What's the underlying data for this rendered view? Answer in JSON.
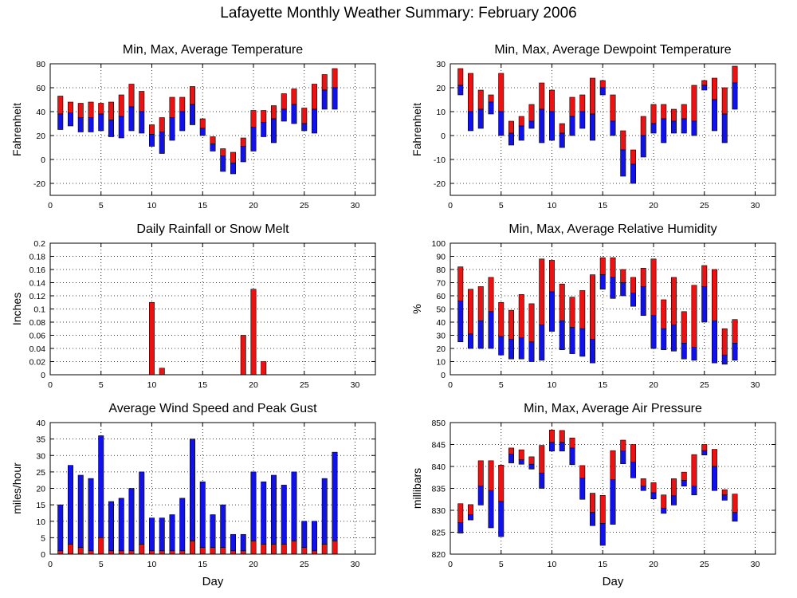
{
  "title": "Lafayette Monthly Weather Summary: February 2006",
  "colors": {
    "max": "#ee1111",
    "min": "#1111ee",
    "axis": "#000000",
    "grid": "#000000"
  },
  "chart_data": [
    {
      "id": "temp",
      "type": "floating-bar",
      "title": "Min, Max, Average Temperature",
      "xlabel": "",
      "ylabel": "Fahrenheit",
      "xlim": [
        0,
        32
      ],
      "xticks": [
        0,
        5,
        10,
        15,
        20,
        25,
        30
      ],
      "ylim": [
        -30,
        80
      ],
      "yticks": [
        -20,
        0,
        20,
        40,
        60,
        80
      ],
      "x": [
        1,
        2,
        3,
        4,
        5,
        6,
        7,
        8,
        9,
        10,
        11,
        12,
        13,
        14,
        15,
        16,
        17,
        18,
        19,
        20,
        21,
        22,
        23,
        24,
        25,
        26,
        27,
        28
      ],
      "min": [
        25,
        28,
        23,
        23,
        24,
        19,
        18,
        24,
        22,
        11,
        5,
        16,
        24,
        29,
        20,
        7,
        -10,
        -12,
        -2,
        7,
        19,
        14,
        32,
        30,
        24,
        22,
        42,
        42
      ],
      "avg": [
        38,
        39,
        35,
        35,
        38,
        33,
        36,
        44,
        40,
        21,
        23,
        35,
        40,
        46,
        26,
        13,
        3,
        -3,
        11,
        27,
        31,
        34,
        42,
        46,
        30,
        42,
        58,
        60
      ],
      "max": [
        53,
        48,
        47,
        48,
        47,
        48,
        54,
        63,
        57,
        29,
        35,
        52,
        52,
        61,
        34,
        19,
        9,
        6,
        18,
        41,
        41,
        45,
        55,
        59,
        43,
        63,
        71,
        76
      ]
    },
    {
      "id": "dewpoint",
      "type": "floating-bar",
      "title": "Min, Max, Average Dewpoint Temperature",
      "xlabel": "",
      "ylabel": "Fahrenheit",
      "xlim": [
        0,
        32
      ],
      "xticks": [
        0,
        5,
        10,
        15,
        20,
        25,
        30
      ],
      "ylim": [
        -25,
        30
      ],
      "yticks": [
        -20,
        -10,
        0,
        10,
        20,
        30
      ],
      "x": [
        1,
        2,
        3,
        4,
        5,
        6,
        7,
        8,
        9,
        10,
        11,
        12,
        13,
        14,
        15,
        16,
        17,
        18,
        19,
        20,
        21,
        22,
        23,
        24,
        25,
        26,
        27,
        28
      ],
      "min": [
        17,
        2,
        3,
        9,
        0,
        -4,
        -2,
        3,
        -3,
        -2,
        -5,
        0,
        3,
        -2,
        17,
        0,
        -17,
        -20,
        -9,
        1,
        -3,
        1,
        1,
        0,
        19,
        2,
        -3,
        11
      ],
      "avg": [
        21,
        10,
        11,
        14,
        10,
        1,
        4,
        6,
        11,
        10,
        1,
        8,
        10,
        9,
        20,
        6,
        -6,
        -12,
        0,
        5,
        7,
        6,
        7,
        6,
        21,
        15,
        9,
        22
      ],
      "max": [
        28,
        26,
        19,
        17,
        26,
        6,
        8,
        13,
        22,
        19,
        5,
        16,
        17,
        24,
        23,
        17,
        2,
        -6,
        8,
        13,
        13,
        11,
        13,
        21,
        23,
        24,
        20,
        29
      ]
    },
    {
      "id": "rain",
      "type": "bar",
      "title": "Daily Rainfall or Snow Melt",
      "xlabel": "",
      "ylabel": "Inches",
      "xlim": [
        0,
        32
      ],
      "xticks": [
        0,
        5,
        10,
        15,
        20,
        25,
        30
      ],
      "ylim": [
        0,
        0.2
      ],
      "yticks": [
        0,
        0.02,
        0.04,
        0.06,
        0.08,
        0.1,
        0.12,
        0.14,
        0.16,
        0.18,
        0.2
      ],
      "x": [
        10,
        11,
        19,
        20,
        21
      ],
      "values": [
        0.11,
        0.01,
        0.06,
        0.13,
        0.02
      ]
    },
    {
      "id": "humidity",
      "type": "floating-bar",
      "title": "Min, Max, Average Relative Humidity",
      "xlabel": "",
      "ylabel": "%",
      "xlim": [
        0,
        32
      ],
      "xticks": [
        0,
        5,
        10,
        15,
        20,
        25,
        30
      ],
      "ylim": [
        0,
        100
      ],
      "yticks": [
        0,
        10,
        20,
        30,
        40,
        50,
        60,
        70,
        80,
        90,
        100
      ],
      "x": [
        1,
        2,
        3,
        4,
        5,
        6,
        7,
        8,
        9,
        10,
        11,
        12,
        13,
        14,
        15,
        16,
        17,
        18,
        19,
        20,
        21,
        22,
        23,
        24,
        25,
        26,
        27,
        28
      ],
      "min": [
        25,
        20,
        20,
        20,
        15,
        12,
        12,
        10,
        11,
        33,
        19,
        16,
        14,
        9,
        65,
        58,
        60,
        52,
        45,
        20,
        19,
        18,
        12,
        11,
        40,
        9,
        8,
        11
      ],
      "avg": [
        56,
        31,
        41,
        48,
        29,
        27,
        28,
        25,
        38,
        63,
        41,
        36,
        35,
        27,
        76,
        74,
        70,
        62,
        67,
        45,
        35,
        38,
        24,
        21,
        67,
        41,
        15,
        24
      ],
      "max": [
        82,
        65,
        67,
        74,
        55,
        49,
        61,
        54,
        88,
        87,
        69,
        59,
        64,
        76,
        89,
        89,
        80,
        74,
        81,
        88,
        57,
        74,
        48,
        68,
        83,
        80,
        35,
        42
      ]
    },
    {
      "id": "wind",
      "type": "stacked-bar",
      "title": "Average Wind Speed and Peak Gust",
      "xlabel": "Day",
      "ylabel": "miles/hour",
      "xlim": [
        0,
        32
      ],
      "xticks": [
        0,
        5,
        10,
        15,
        20,
        25,
        30
      ],
      "ylim": [
        0,
        40
      ],
      "yticks": [
        0,
        5,
        10,
        15,
        20,
        25,
        30,
        35,
        40
      ],
      "x": [
        1,
        2,
        3,
        4,
        5,
        6,
        7,
        8,
        9,
        10,
        11,
        12,
        13,
        14,
        15,
        16,
        17,
        18,
        19,
        20,
        21,
        22,
        23,
        24,
        25,
        26,
        27,
        28
      ],
      "series": [
        {
          "name": "avg",
          "values": [
            1,
            3,
            2,
            1,
            5,
            1,
            1,
            1,
            3,
            1,
            1,
            1,
            1,
            4,
            2,
            2,
            2,
            1,
            1,
            4,
            3,
            3,
            3,
            4,
            2,
            1,
            3,
            4
          ]
        },
        {
          "name": "gust",
          "values": [
            15,
            27,
            24,
            23,
            36,
            16,
            17,
            20,
            25,
            11,
            11,
            12,
            17,
            35,
            22,
            12,
            15,
            6,
            6,
            25,
            22,
            24,
            21,
            25,
            10,
            10,
            23,
            31
          ]
        }
      ]
    },
    {
      "id": "pressure",
      "type": "floating-bar",
      "title": "Min, Max, Average Air Pressure",
      "xlabel": "Day",
      "ylabel": "millibars",
      "xlim": [
        0,
        32
      ],
      "xticks": [
        0,
        5,
        10,
        15,
        20,
        25,
        30
      ],
      "ylim": [
        820,
        850
      ],
      "yticks": [
        820,
        825,
        830,
        835,
        840,
        845,
        850
      ],
      "x": [
        1,
        2,
        3,
        4,
        5,
        6,
        7,
        8,
        9,
        10,
        11,
        12,
        13,
        14,
        15,
        16,
        17,
        18,
        19,
        20,
        21,
        22,
        23,
        24,
        25,
        26,
        27,
        28
      ],
      "min": [
        824.8,
        827.8,
        831.2,
        826.0,
        824.0,
        840.8,
        840.5,
        839.4,
        835.0,
        843.5,
        843.5,
        840.4,
        832.5,
        826.5,
        822.0,
        826.8,
        840.6,
        837.4,
        834.5,
        832.6,
        829.3,
        831.2,
        835.5,
        833.5,
        842.6,
        834.5,
        832.3,
        827.5
      ],
      "avg": [
        827.2,
        829.0,
        835.5,
        834.5,
        832.0,
        842.8,
        841.5,
        840.5,
        838.5,
        845.5,
        845.5,
        844.2,
        837.3,
        829.5,
        827.0,
        837.0,
        843.5,
        841.0,
        835.5,
        834.0,
        830.5,
        833.3,
        836.8,
        835.5,
        843.6,
        840.0,
        833.5,
        829.5
      ],
      "max": [
        831.5,
        831.3,
        841.3,
        841.3,
        840.3,
        844.2,
        843.8,
        842.2,
        844.8,
        848.3,
        848.2,
        846.5,
        840.2,
        833.9,
        833.4,
        843.6,
        846.0,
        845.0,
        837.2,
        836.3,
        833.5,
        837.2,
        838.7,
        842.7,
        845.0,
        843.9,
        834.7,
        833.7
      ]
    }
  ]
}
